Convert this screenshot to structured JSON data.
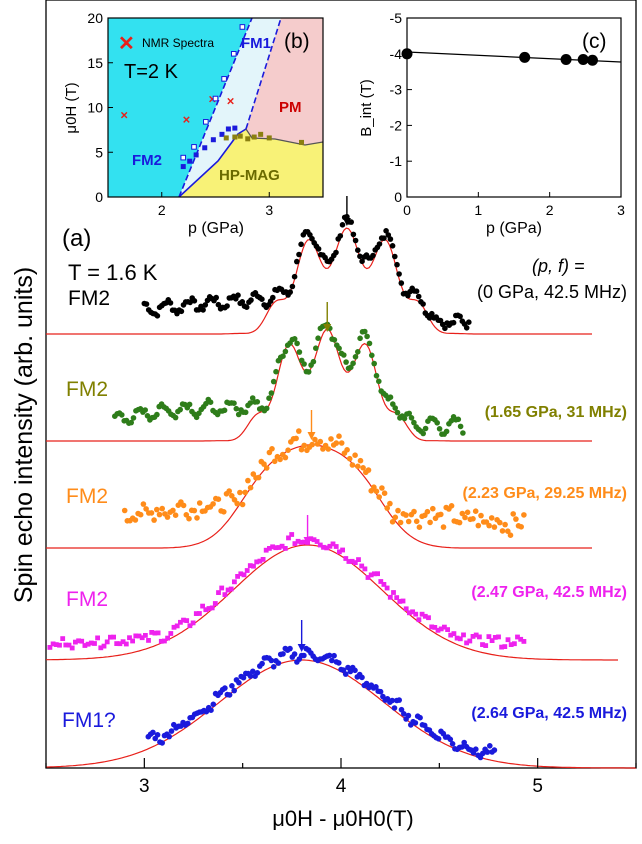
{
  "figure": {
    "main_panel_label": "(a)",
    "temperature_label": "T = 1.6 K",
    "conditions_header_line1": "(p, f) =",
    "ylabel": "Spin echo intensity (arb. units)",
    "xlabel": "μ0H - μ0H0(T)"
  },
  "chart_data": [
    {
      "type": "scatter",
      "panel": "a",
      "xlabel": "μ0H - μ0H0(T)",
      "ylabel": "Spin echo intensity (arb. units)",
      "xlim": [
        2.5,
        5.5
      ],
      "xticks": [
        3,
        4,
        5
      ],
      "series": [
        {
          "phase": "FM2",
          "condition": "(0 GPa, 42.5 MHz)",
          "color": "#000000",
          "marker": "circle",
          "x_range": [
            3.0,
            4.65
          ],
          "peak_x": 4.03,
          "arrow_color": "#000000"
        },
        {
          "phase": "FM2",
          "condition": "(1.65 GPa, 31 MHz)",
          "color": "#2e7d1a",
          "marker": "circle",
          "x_range": [
            2.85,
            4.62
          ],
          "peak_x": 3.93,
          "arrow_color": "#808000"
        },
        {
          "phase": "FM2",
          "condition": "(2.23 GPa,  29.25 MHz)",
          "color": "#ff8c1a",
          "marker": "circle",
          "x_range": [
            2.9,
            4.93
          ],
          "peak_x": 3.85,
          "arrow_color": "#ff8c1a"
        },
        {
          "phase": "FM2",
          "condition": "(2.47 GPa, 42.5 MHz)",
          "color": "#ee22ee",
          "marker": "square",
          "x_range": [
            2.52,
            4.93
          ],
          "peak_x": 3.83,
          "arrow_color": "#ee22ee"
        },
        {
          "phase": "FM1?",
          "condition": "(2.64 GPa, 42.5 MHz)",
          "color": "#1a1adc",
          "marker": "circle",
          "x_range": [
            3.02,
            4.78
          ],
          "peak_x": 3.8,
          "arrow_color": "#1a1adc"
        }
      ]
    },
    {
      "type": "area",
      "panel": "b",
      "label": "(b)",
      "xlabel": "p (GPa)",
      "ylabel": "μ0H (T)",
      "xlim": [
        1.5,
        3.5
      ],
      "ylim": [
        0,
        20
      ],
      "xticks": [
        2,
        3
      ],
      "yticks": [
        0,
        5,
        10,
        15,
        20
      ],
      "temperature": "T=2 K",
      "legend": "NMR Spectra",
      "regions": [
        "FM2",
        "FM1",
        "PM",
        "HP-MAG"
      ],
      "nmr_points": [
        {
          "x": 1.65,
          "y": 9.2
        },
        {
          "x": 2.23,
          "y": 8.7
        },
        {
          "x": 2.47,
          "y": 11.0
        },
        {
          "x": 2.64,
          "y": 10.8
        }
      ],
      "filled_squares": [
        {
          "x": 2.2,
          "y": 3.4
        },
        {
          "x": 2.26,
          "y": 4.0
        },
        {
          "x": 2.32,
          "y": 4.7
        },
        {
          "x": 2.4,
          "y": 5.5
        },
        {
          "x": 2.48,
          "y": 6.4
        },
        {
          "x": 2.56,
          "y": 7.0
        },
        {
          "x": 2.62,
          "y": 7.6
        },
        {
          "x": 2.68,
          "y": 7.7
        }
      ],
      "open_squares": [
        {
          "x": 2.2,
          "y": 4.4
        },
        {
          "x": 2.3,
          "y": 5.6
        },
        {
          "x": 2.41,
          "y": 8.4
        },
        {
          "x": 2.5,
          "y": 11.0
        },
        {
          "x": 2.58,
          "y": 13.2
        },
        {
          "x": 2.67,
          "y": 16.0
        },
        {
          "x": 2.75,
          "y": 19.0
        }
      ],
      "olive_squares": [
        {
          "x": 2.6,
          "y": 6.6
        },
        {
          "x": 2.68,
          "y": 6.7
        },
        {
          "x": 2.73,
          "y": 6.8
        },
        {
          "x": 2.8,
          "y": 6.5
        },
        {
          "x": 2.86,
          "y": 6.7
        },
        {
          "x": 2.92,
          "y": 7.0
        },
        {
          "x": 3.0,
          "y": 6.6
        },
        {
          "x": 3.3,
          "y": 6.1
        }
      ],
      "colors": {
        "FM2": "#33e1f0",
        "FM1": "#e3f5fa",
        "PM": "#f5cccc",
        "HP-MAG": "#f8f277",
        "nmr": "#e8201a",
        "squares": "#1a1adc",
        "olive": "#8a7f10"
      }
    },
    {
      "type": "scatter",
      "panel": "c",
      "label": "(c)",
      "xlabel": "p (GPa)",
      "ylabel": "B_int (T)",
      "xlim": [
        0,
        3
      ],
      "ylim": [
        -5,
        0
      ],
      "y_inverted": true,
      "xticks": [
        0,
        1,
        2,
        3
      ],
      "yticks": [
        -5,
        -4,
        -3,
        -2,
        -1,
        0
      ],
      "points": [
        {
          "x": 0.0,
          "y": -4.0
        },
        {
          "x": 1.65,
          "y": -3.9
        },
        {
          "x": 2.23,
          "y": -3.84
        },
        {
          "x": 2.47,
          "y": -3.84
        },
        {
          "x": 2.6,
          "y": -3.82
        }
      ],
      "fit": [
        {
          "x": 0.0,
          "y": -4.05
        },
        {
          "x": 3.0,
          "y": -3.77
        }
      ]
    }
  ]
}
